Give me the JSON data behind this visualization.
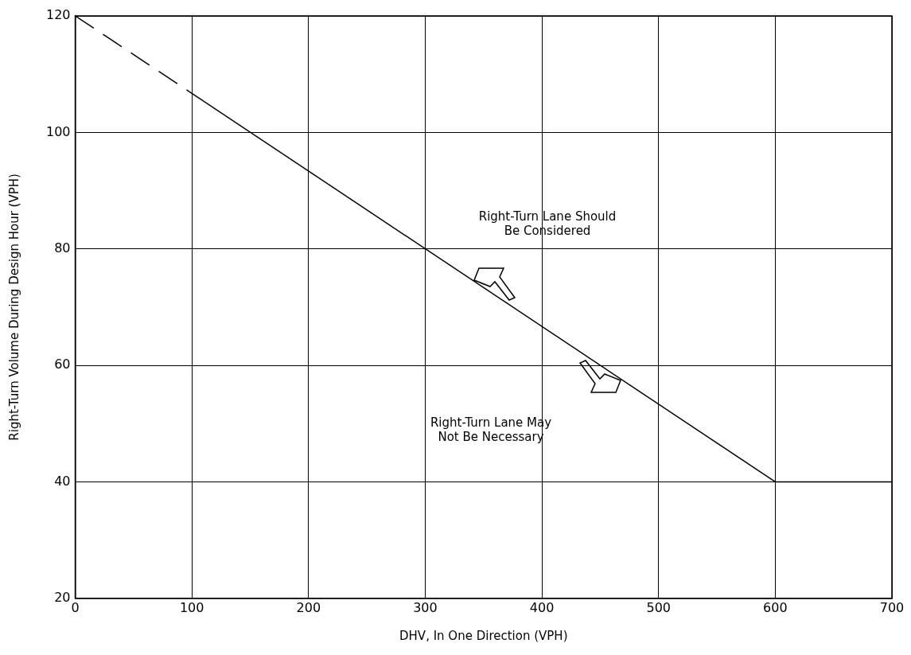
{
  "chart_data": {
    "type": "line",
    "xlabel": "DHV, In One Direction (VPH)",
    "ylabel": "Right-Turn Volume During Design Hour (VPH)",
    "series": [
      {
        "color": "#000000",
        "line_style": "dashed",
        "x": [
          0,
          100
        ],
        "values": [
          120,
          106.7
        ]
      },
      {
        "color": "#000000",
        "line_style": "solid",
        "x": [
          100,
          600,
          700
        ],
        "values": [
          106.7,
          40,
          40
        ]
      }
    ],
    "xlim": [
      0,
      700
    ],
    "xticks": [
      0,
      100,
      200,
      300,
      400,
      500,
      600,
      700
    ],
    "ylim": [
      20,
      120
    ],
    "yticks": [
      20,
      40,
      60,
      80,
      100,
      120
    ],
    "annotations": [
      "Right-Turn Lane Should\nBe Considered",
      "Right-Turn Lane May\nNot Be Necessary"
    ],
    "grid": true,
    "legend": false,
    "marker": "none"
  }
}
